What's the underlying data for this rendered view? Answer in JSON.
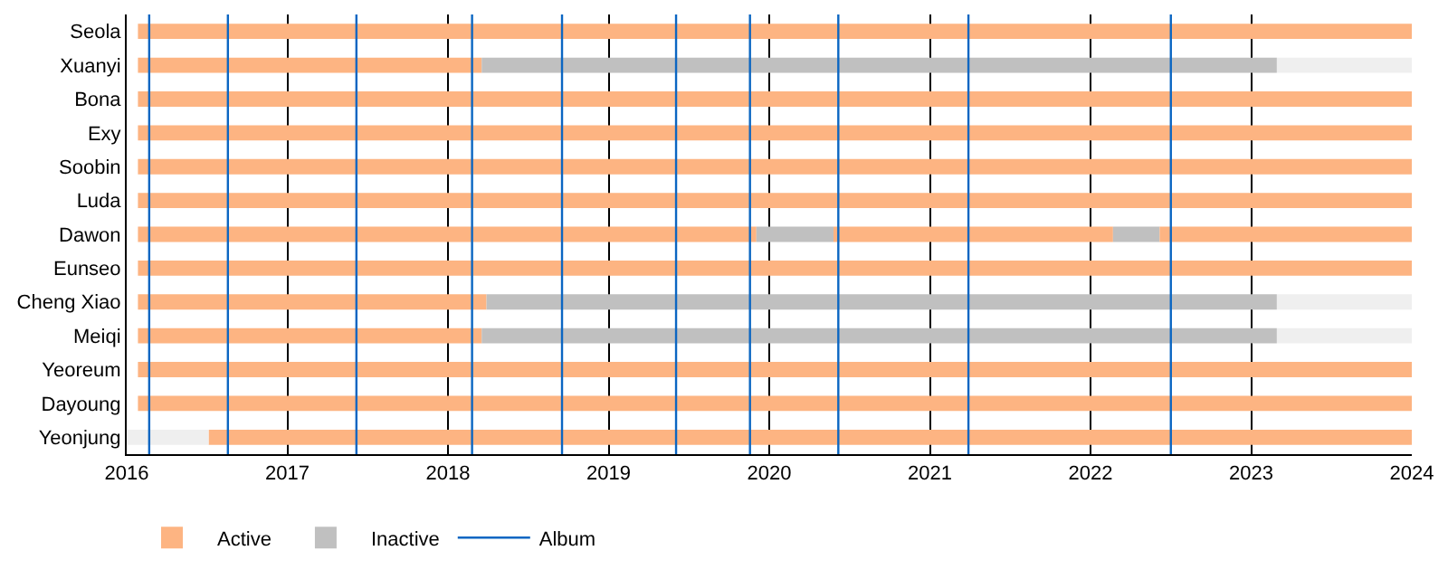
{
  "chart_data": {
    "type": "bar",
    "orientation": "horizontal",
    "categories": [
      "Seola",
      "Xuanyi",
      "Bona",
      "Exy",
      "Soobin",
      "Luda",
      "Dawon",
      "Eunseo",
      "Cheng Xiao",
      "Meiqi",
      "Yeoreum",
      "Dayoung",
      "Yeonjung"
    ],
    "series": [
      {
        "name": "Active",
        "color": "#fdb482",
        "base": [
          2016.07,
          2016.07,
          2016.07,
          2016.07,
          2016.07,
          2016.07,
          2016.07,
          2016.07,
          2016.07,
          2016.07,
          2016.07,
          2016.07,
          2016.51
        ],
        "values": [
          7.93,
          2.14,
          7.93,
          7.93,
          7.93,
          7.93,
          3.85,
          7.93,
          2.17,
          2.14,
          7.93,
          7.93,
          7.49
        ]
      },
      {
        "name": "Inactive",
        "color": "#c0c0c0",
        "base": [
          null,
          2018.21,
          null,
          null,
          null,
          null,
          2019.92,
          null,
          2018.24,
          2018.21,
          null,
          null,
          null
        ],
        "values": [
          null,
          4.95,
          null,
          null,
          null,
          null,
          0.48,
          null,
          4.92,
          4.95,
          null,
          null,
          null
        ]
      },
      {
        "color": "#fdb482",
        "base": [
          null,
          null,
          null,
          null,
          null,
          null,
          2020.4,
          null,
          null,
          null,
          null,
          null,
          null
        ],
        "values": [
          null,
          null,
          null,
          null,
          null,
          null,
          1.74,
          null,
          null,
          null,
          null,
          null,
          null
        ]
      },
      {
        "color": "#c0c0c0",
        "base": [
          null,
          null,
          null,
          null,
          null,
          null,
          2022.14,
          null,
          null,
          null,
          null,
          null,
          null
        ],
        "values": [
          null,
          null,
          null,
          null,
          null,
          null,
          0.29,
          null,
          null,
          null,
          null,
          null,
          null
        ]
      },
      {
        "color": "#fdb482",
        "base": [
          null,
          null,
          null,
          null,
          null,
          null,
          2022.43,
          null,
          null,
          null,
          null,
          null,
          null
        ],
        "values": [
          null,
          null,
          null,
          null,
          null,
          null,
          1.57,
          null,
          null,
          null,
          null,
          null,
          null
        ]
      },
      {
        "color": "#efefef",
        "base": [
          null,
          2023.16,
          null,
          null,
          null,
          null,
          null,
          null,
          2023.16,
          2023.16,
          null,
          null,
          2016.0
        ],
        "values": [
          null,
          0.84,
          null,
          null,
          null,
          null,
          null,
          null,
          0.84,
          0.84,
          null,
          null,
          0.51
        ]
      }
    ],
    "ref_lines": [
      {
        "axis": "x",
        "value": 2016.14,
        "label": "Album",
        "color": "#0b66c2"
      },
      {
        "axis": "x",
        "value": 2016.63,
        "color": "#0b66c2"
      },
      {
        "axis": "x",
        "value": 2017.43,
        "color": "#0b66c2"
      },
      {
        "axis": "x",
        "value": 2018.15,
        "color": "#0b66c2"
      },
      {
        "axis": "x",
        "value": 2018.71,
        "color": "#0b66c2"
      },
      {
        "axis": "x",
        "value": 2019.42,
        "color": "#0b66c2"
      },
      {
        "axis": "x",
        "value": 2019.88,
        "color": "#0b66c2"
      },
      {
        "axis": "x",
        "value": 2020.43,
        "color": "#0b66c2"
      },
      {
        "axis": "x",
        "value": 2021.24,
        "color": "#0b66c2"
      },
      {
        "axis": "x",
        "value": 2022.5,
        "color": "#0b66c2"
      }
    ],
    "xlim": [
      2016,
      2024
    ],
    "xticks": [
      2016,
      2017,
      2018,
      2019,
      2020,
      2021,
      2022,
      2023,
      2024
    ],
    "grid": "x",
    "legend": "bottom left"
  }
}
